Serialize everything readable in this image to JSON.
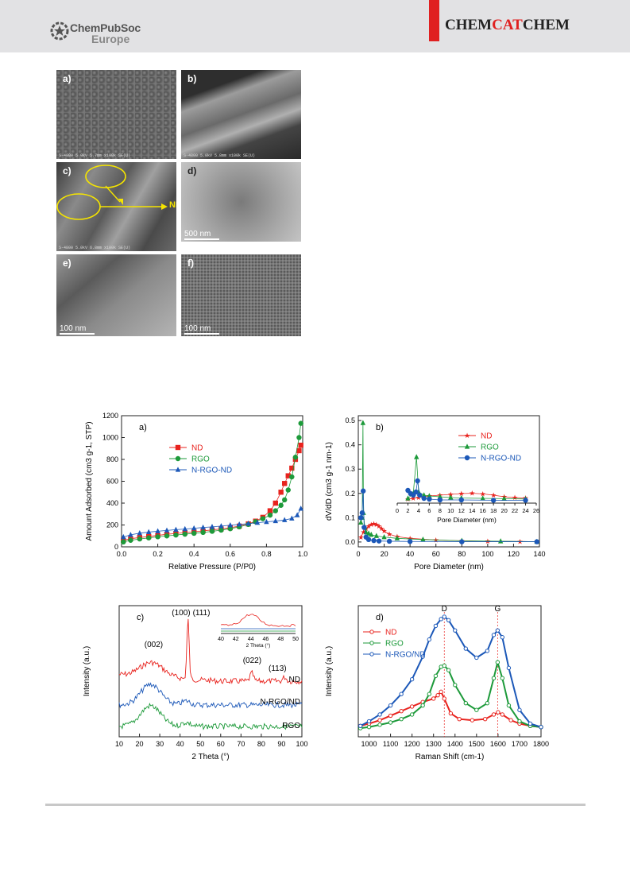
{
  "header": {
    "logo_line1": "ChemPubSoc",
    "logo_line2": "Europe",
    "journal_pre": "CHEM",
    "journal_mid": "CAT",
    "journal_post": "CHEM",
    "journal_accent": "#e02020"
  },
  "micrographs": [
    {
      "label": "a)",
      "info": "S-4800 5.0kV 5.7mm x100k SE(U)",
      "scale": ""
    },
    {
      "label": "b)",
      "info": "S-4800 5.0kV 5.8mm x100k SE(U)",
      "scale": ""
    },
    {
      "label": "c)",
      "info": "S-4800 5.0kV 6.8mm x100k SE(U)",
      "scale": "",
      "callout": "ND"
    },
    {
      "label": "d)",
      "info": "",
      "scale": "500 nm"
    },
    {
      "label": "e)",
      "info": "",
      "scale": "100 nm"
    },
    {
      "label": "f)",
      "info": "",
      "scale": "100 nm"
    }
  ],
  "chart_data": [
    {
      "panel": "a)",
      "type": "scatter",
      "xlabel": "Relative Pressure (P/P0)",
      "ylabel": "Amount Adsorbed (cm3 g-1, STP)",
      "xlim": [
        0.0,
        1.0
      ],
      "ylim": [
        0,
        1200
      ],
      "xticks": [
        0.0,
        0.2,
        0.4,
        0.6,
        0.8,
        1.0
      ],
      "yticks": [
        0,
        200,
        400,
        600,
        800,
        1000,
        1200
      ],
      "legend": "top-left",
      "series": [
        {
          "name": "ND",
          "color": "#e8231e",
          "marker": "square",
          "x": [
            0.01,
            0.05,
            0.1,
            0.15,
            0.2,
            0.25,
            0.3,
            0.35,
            0.4,
            0.45,
            0.5,
            0.55,
            0.6,
            0.65,
            0.7,
            0.74,
            0.78,
            0.82,
            0.85,
            0.88,
            0.9,
            0.92,
            0.94,
            0.96,
            0.98,
            0.99
          ],
          "y": [
            60,
            75,
            85,
            95,
            105,
            115,
            122,
            130,
            138,
            146,
            155,
            164,
            175,
            190,
            210,
            235,
            270,
            330,
            400,
            500,
            580,
            650,
            720,
            800,
            880,
            930
          ]
        },
        {
          "name": "RGO",
          "color": "#1d9a3a",
          "marker": "circle",
          "x": [
            0.01,
            0.05,
            0.1,
            0.15,
            0.2,
            0.25,
            0.3,
            0.35,
            0.4,
            0.45,
            0.5,
            0.55,
            0.6,
            0.65,
            0.7,
            0.74,
            0.78,
            0.82,
            0.85,
            0.88,
            0.9,
            0.92,
            0.94,
            0.96,
            0.98,
            0.99
          ],
          "y": [
            45,
            60,
            72,
            82,
            92,
            100,
            108,
            116,
            124,
            132,
            142,
            153,
            166,
            183,
            205,
            230,
            258,
            290,
            330,
            380,
            430,
            520,
            640,
            820,
            1000,
            1130
          ]
        },
        {
          "name": "N-RGO-ND",
          "color": "#1c58b8",
          "marker": "triangle",
          "x": [
            0.01,
            0.05,
            0.1,
            0.15,
            0.2,
            0.25,
            0.3,
            0.35,
            0.4,
            0.45,
            0.5,
            0.55,
            0.6,
            0.65,
            0.7,
            0.75,
            0.8,
            0.85,
            0.9,
            0.94,
            0.97,
            0.99
          ],
          "y": [
            90,
            110,
            125,
            135,
            143,
            150,
            157,
            163,
            170,
            177,
            183,
            190,
            198,
            205,
            213,
            221,
            228,
            236,
            245,
            260,
            290,
            350
          ]
        }
      ]
    },
    {
      "panel": "b)",
      "type": "line",
      "xlabel": "Pore Diameter (nm)",
      "ylabel": "dV/dD (cm3 g-1 nm-1)",
      "xlim": [
        0,
        140
      ],
      "ylim": [
        -0.02,
        0.52
      ],
      "xticks": [
        0,
        20,
        40,
        60,
        80,
        100,
        120,
        140
      ],
      "yticks": [
        0.0,
        0.1,
        0.2,
        0.3,
        0.4,
        0.5
      ],
      "legend": "top-right",
      "series": [
        {
          "name": "ND",
          "color": "#e8231e",
          "marker": "star",
          "x": [
            2,
            4,
            6,
            8,
            10,
            12,
            14,
            16,
            18,
            20,
            24,
            30,
            40,
            60,
            80,
            100,
            125,
            138
          ],
          "y": [
            0.02,
            0.04,
            0.055,
            0.065,
            0.072,
            0.075,
            0.072,
            0.065,
            0.055,
            0.045,
            0.032,
            0.022,
            0.015,
            0.008,
            0.005,
            0.003,
            0.002,
            0.001
          ]
        },
        {
          "name": "RGO",
          "color": "#1d9a3a",
          "marker": "triangle",
          "x": [
            2,
            3,
            3.6,
            4,
            5,
            6,
            8,
            10,
            14,
            20,
            30,
            50,
            80,
            110,
            138
          ],
          "y": [
            0.08,
            0.1,
            0.49,
            0.12,
            0.06,
            0.04,
            0.035,
            0.03,
            0.025,
            0.02,
            0.015,
            0.01,
            0.005,
            0.003,
            0.001
          ]
        },
        {
          "name": "N-RGO-ND",
          "color": "#1c58b8",
          "marker": "circle",
          "x": [
            2,
            3,
            3.8,
            4.5,
            6,
            8,
            12,
            16,
            24,
            40,
            80,
            138
          ],
          "y": [
            0.1,
            0.12,
            0.21,
            0.06,
            0.02,
            0.01,
            0.006,
            0.004,
            0.003,
            0.002,
            0.001,
            0.001
          ]
        }
      ],
      "inset": {
        "xlabel": "Pore Diameter (nm)",
        "xlim": [
          0,
          26
        ],
        "xticks": [
          0,
          2,
          4,
          6,
          8,
          10,
          12,
          14,
          16,
          18,
          20,
          22,
          24,
          26
        ],
        "ylim": [
          0.2,
          0.5
        ],
        "series": [
          {
            "name": "ND",
            "color": "#e8231e",
            "x": [
              2,
              3,
              4,
              6,
              8,
              10,
              12,
              14,
              16,
              18,
              20,
              22,
              24
            ],
            "y": [
              0.225,
              0.23,
              0.235,
              0.245,
              0.25,
              0.255,
              0.26,
              0.262,
              0.258,
              0.25,
              0.24,
              0.235,
              0.232
            ]
          },
          {
            "name": "RGO",
            "color": "#1d9a3a",
            "x": [
              2,
              3,
              3.6,
              4,
              5,
              6,
              8,
              10,
              12,
              16,
              20,
              24
            ],
            "y": [
              0.23,
              0.26,
              0.49,
              0.27,
              0.25,
              0.245,
              0.24,
              0.235,
              0.232,
              0.23,
              0.228,
              0.226
            ]
          },
          {
            "name": "N-RGO-ND",
            "color": "#1c58b8",
            "x": [
              2,
              2.5,
              3,
              3.5,
              3.8,
              4.2,
              5,
              6,
              8,
              12,
              18,
              24
            ],
            "y": [
              0.28,
              0.26,
              0.25,
              0.27,
              0.34,
              0.25,
              0.23,
              0.225,
              0.22,
              0.22,
              0.218,
              0.218
            ]
          }
        ]
      }
    },
    {
      "panel": "c)",
      "type": "line",
      "xlabel": "2 Theta (°)",
      "ylabel": "Intensity (a.u.)",
      "xlim": [
        10,
        100
      ],
      "xticks": [
        10,
        20,
        30,
        40,
        50,
        60,
        70,
        80,
        90,
        100
      ],
      "annotations": [
        "(100)",
        "(111)",
        "(002)",
        "(022)",
        "(113)"
      ],
      "traces": [
        {
          "name": "ND",
          "color": "#e8231e"
        },
        {
          "name": "N-RGO/ND",
          "color": "#1c58b8"
        },
        {
          "name": "RGO",
          "color": "#1d9a3a"
        }
      ],
      "inset": {
        "xlabel": "2 Theta (°)",
        "xlim": [
          40,
          50
        ],
        "xticks": [
          40,
          42,
          44,
          46,
          48,
          50
        ]
      }
    },
    {
      "panel": "d)",
      "type": "line",
      "xlabel": "Raman Shift (cm-1)",
      "ylabel": "Intensity (a.u.)",
      "xlim": [
        950,
        1800
      ],
      "xticks": [
        1000,
        1100,
        1200,
        1300,
        1400,
        1500,
        1600,
        1700,
        1800
      ],
      "legend": "top-left",
      "peaks": [
        {
          "label": "D",
          "x": 1350
        },
        {
          "label": "G",
          "x": 1598
        }
      ],
      "series": [
        {
          "name": "ND",
          "color": "#e8231e",
          "marker": "open-circle",
          "x": [
            960,
            1000,
            1050,
            1100,
            1150,
            1200,
            1250,
            1300,
            1320,
            1335,
            1350,
            1380,
            1420,
            1480,
            1540,
            1580,
            1600,
            1620,
            1660,
            1700,
            1750,
            1800
          ],
          "y": [
            0.04,
            0.06,
            0.09,
            0.13,
            0.17,
            0.21,
            0.25,
            0.28,
            0.31,
            0.34,
            0.28,
            0.15,
            0.1,
            0.09,
            0.1,
            0.14,
            0.16,
            0.14,
            0.09,
            0.06,
            0.04,
            0.03
          ]
        },
        {
          "name": "RGO",
          "color": "#1d9a3a",
          "marker": "open-circle",
          "x": [
            960,
            1000,
            1050,
            1100,
            1150,
            1200,
            1250,
            1280,
            1310,
            1335,
            1350,
            1370,
            1400,
            1450,
            1500,
            1550,
            1580,
            1598,
            1620,
            1650,
            1700,
            1750,
            1800
          ],
          "y": [
            0.02,
            0.03,
            0.05,
            0.07,
            0.1,
            0.14,
            0.22,
            0.32,
            0.48,
            0.56,
            0.57,
            0.53,
            0.4,
            0.24,
            0.18,
            0.24,
            0.46,
            0.6,
            0.46,
            0.22,
            0.08,
            0.04,
            0.03
          ]
        },
        {
          "name": "N-RGO/ND",
          "color": "#1c58b8",
          "marker": "open-circle",
          "x": [
            960,
            1000,
            1050,
            1100,
            1150,
            1200,
            1250,
            1280,
            1310,
            1335,
            1350,
            1370,
            1400,
            1450,
            1500,
            1550,
            1580,
            1598,
            1620,
            1650,
            1700,
            1750,
            1800
          ],
          "y": [
            0.04,
            0.08,
            0.14,
            0.22,
            0.32,
            0.45,
            0.65,
            0.8,
            0.92,
            0.98,
            1.0,
            0.97,
            0.88,
            0.72,
            0.64,
            0.7,
            0.84,
            0.88,
            0.82,
            0.55,
            0.18,
            0.06,
            0.03
          ]
        }
      ]
    }
  ]
}
